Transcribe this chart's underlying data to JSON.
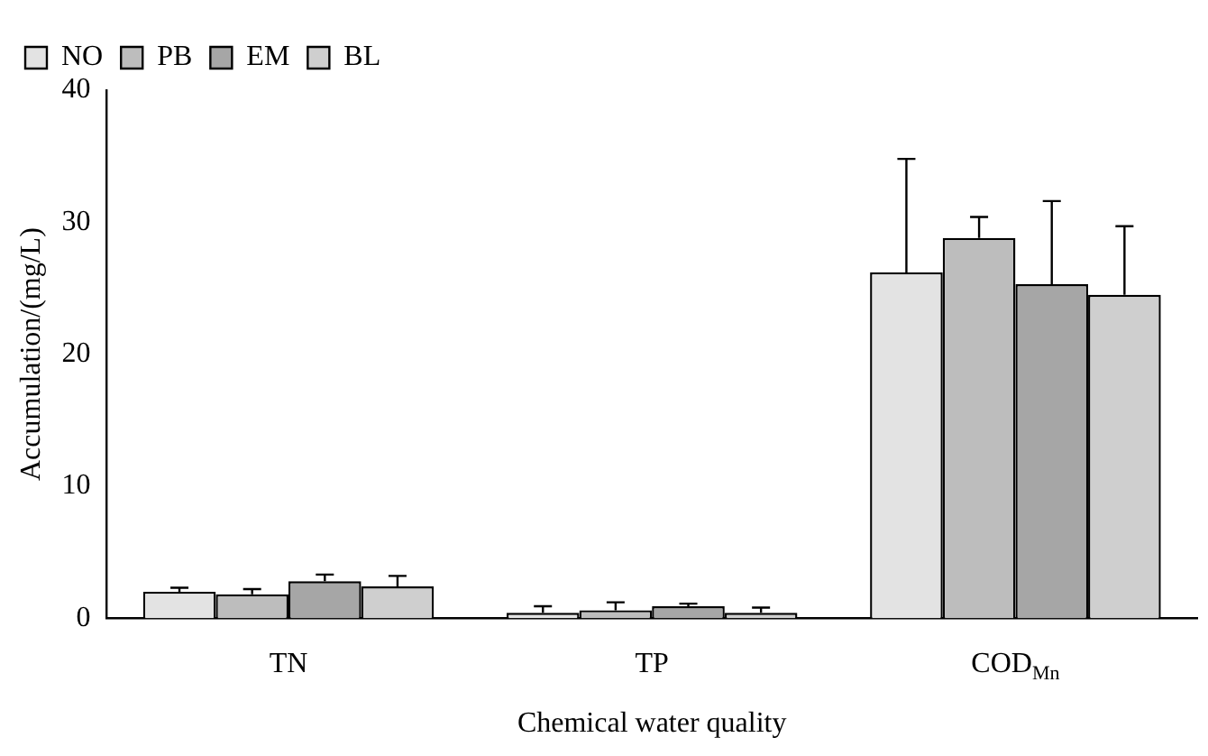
{
  "chart_data": {
    "type": "bar",
    "xlabel": "Chemical water quality",
    "ylabel": "Accumulation/(mg/L)",
    "categories": [
      "TN",
      "TP",
      "COD$_{Mn}$"
    ],
    "series": [
      {
        "name": "NO",
        "color": "#e3e3e3",
        "values": [
          2.0,
          0.4,
          26.2
        ],
        "errors": [
          0.3,
          0.5,
          8.6
        ]
      },
      {
        "name": "PB",
        "color": "#bdbdbd",
        "values": [
          1.8,
          0.6,
          28.8
        ],
        "errors": [
          0.4,
          0.6,
          1.6
        ]
      },
      {
        "name": "EM",
        "color": "#a6a6a6",
        "values": [
          2.8,
          0.9,
          25.3
        ],
        "errors": [
          0.5,
          0.2,
          6.3
        ]
      },
      {
        "name": "BL",
        "color": "#cfcfcf",
        "values": [
          2.4,
          0.4,
          24.5
        ],
        "errors": [
          0.8,
          0.4,
          5.2
        ]
      }
    ],
    "ylim": [
      0,
      40
    ],
    "yticks": [
      0,
      10,
      20,
      30,
      40
    ],
    "grid": false,
    "legend": "top left"
  }
}
